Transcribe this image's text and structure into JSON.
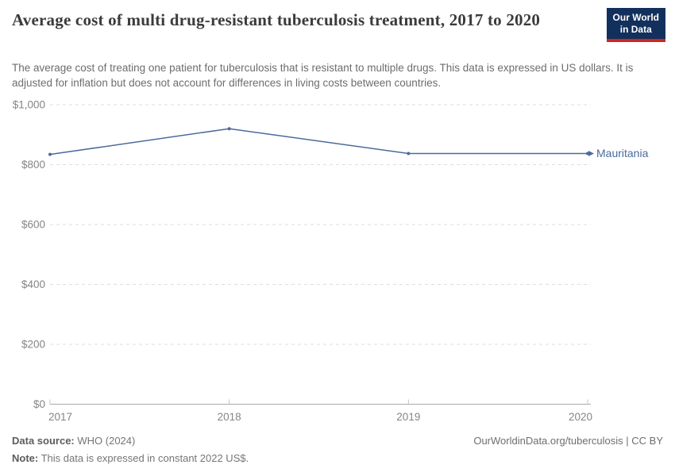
{
  "header": {
    "title": "Average cost of multi drug-resistant tuberculosis treatment, 2017 to 2020",
    "subtitle": "The average cost of treating one patient for tuberculosis that is resistant to multiple drugs. This data is expressed in US dollars. It is adjusted for inflation but does not account for differences in living costs between countries."
  },
  "logo": {
    "line1": "Our World",
    "line2": "in Data",
    "bg_color": "#12305c",
    "accent_color": "#cf2622"
  },
  "chart_data": {
    "type": "line",
    "title": "Average cost of multi drug-resistant tuberculosis treatment, 2017 to 2020",
    "x": [
      "2017",
      "2018",
      "2019",
      "2020"
    ],
    "series": [
      {
        "name": "Mauritania",
        "color": "#4c6a9c",
        "values": [
          834,
          920,
          837,
          837
        ]
      }
    ],
    "ylim": [
      0,
      1000
    ],
    "yticks": [
      0,
      200,
      400,
      600,
      800,
      1000
    ],
    "ytick_labels": [
      "$0",
      "$200",
      "$400",
      "$600",
      "$800",
      "$1,000"
    ],
    "xlabel": "",
    "ylabel": "",
    "grid": true,
    "grid_color": "#dedede",
    "axis_color": "#a9a9a9",
    "tick_color": "#c4c4c4",
    "tick_label_color": "#858585",
    "legend_position": "line-end"
  },
  "footer": {
    "datasource_label": "Data source:",
    "datasource_value": "WHO (2024)",
    "note_label": "Note:",
    "note_value": "This data is expressed in constant 2022 US$.",
    "link": "OurWorldinData.org/tuberculosis | CC BY"
  }
}
